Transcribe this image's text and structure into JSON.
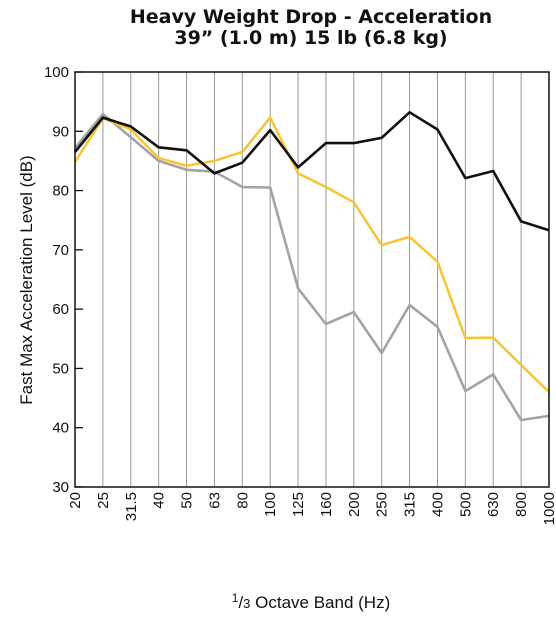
{
  "chart_data": {
    "type": "line",
    "title": "Heavy Weight Drop - Acceleration",
    "subtitle": "39” (1.0 m) 15 lb (6.8 kg)",
    "xlabel_prefix_num": "1",
    "xlabel_prefix_den": "3",
    "xlabel": " Octave Band (Hz)",
    "ylabel": "Fast Max Acceleration Level (dB)",
    "ylim": [
      30,
      100
    ],
    "yticks": [
      "30",
      "40",
      "50",
      "60",
      "70",
      "80",
      "90",
      "100"
    ],
    "categories": [
      "20",
      "25",
      "31.5",
      "40",
      "50",
      "63",
      "80",
      "100",
      "125",
      "160",
      "200",
      "250",
      "315",
      "400",
      "500",
      "630",
      "800",
      "1000"
    ],
    "grid": "vertical",
    "series": [
      {
        "color": "#111111",
        "values": [
          86.5,
          92.3,
          90.8,
          87.3,
          86.8,
          82.9,
          84.7,
          90.2,
          83.9,
          88.0,
          88.0,
          88.9,
          93.2,
          90.3,
          82.1,
          83.3,
          74.8,
          73.3
        ]
      },
      {
        "color": "#f5c53a",
        "values": [
          84.8,
          92.2,
          90.3,
          85.5,
          84.2,
          85.0,
          86.5,
          92.3,
          82.9,
          80.6,
          78.0,
          70.8,
          72.2,
          68.0,
          55.1,
          55.2,
          50.6,
          46.0
        ]
      },
      {
        "color": "#a3a3a3",
        "values": [
          87.2,
          92.9,
          89.0,
          85.0,
          83.5,
          83.2,
          80.6,
          80.5,
          63.5,
          57.5,
          59.5,
          52.6,
          60.7,
          57.0,
          46.2,
          49.0,
          41.3,
          42.0
        ]
      }
    ]
  }
}
